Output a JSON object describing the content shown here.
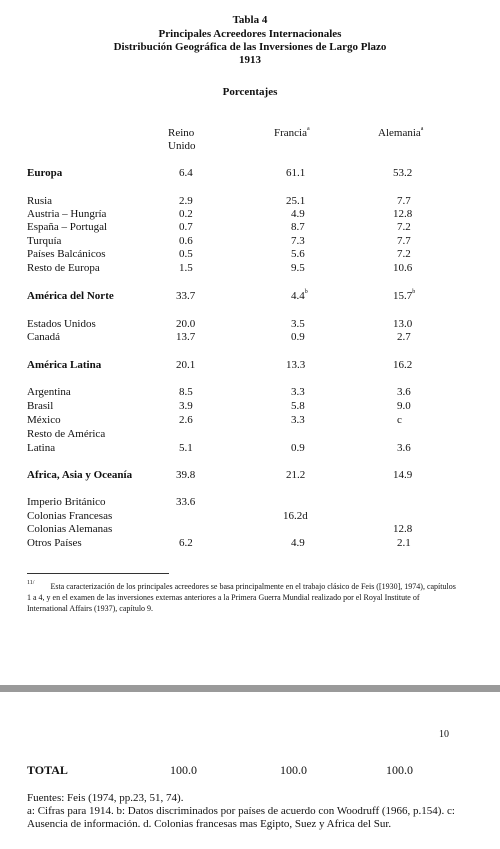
{
  "header": {
    "table_no": "Tabla 4",
    "line1": "Principales Acreedores Internacionales",
    "line2": "Distribución Geográfica de las Inversiones de Largo Plazo",
    "year": "1913",
    "units": "Porcentajes"
  },
  "columns": {
    "c1_line1": "Reino",
    "c1_line2": "Unido",
    "c2": "Francia",
    "c2_sup": "a",
    "c3": "Alemania",
    "c3_sup": "a"
  },
  "rows": {
    "europa": {
      "label": "Europa",
      "c1": "6.4",
      "c2": "61.1",
      "c3": "53.2"
    },
    "rusia": {
      "label": "Rusia",
      "c1": "2.9",
      "c2": "25.1",
      "c3": "7.7"
    },
    "austria": {
      "label": "Austria – Hungría",
      "c1": "0.2",
      "c2": "4.9",
      "c3": "12.8"
    },
    "espana": {
      "label": "España – Portugal",
      "c1": "0.7",
      "c2": "8.7",
      "c3": "7.2"
    },
    "turquia": {
      "label": "Turquía",
      "c1": "0.6",
      "c2": "7.3",
      "c3": "7.7"
    },
    "balcanicos": {
      "label": "Países Balcánicos",
      "c1": "0.5",
      "c2": "5.6",
      "c3": "7.2"
    },
    "resto_europa": {
      "label": "Resto de Europa",
      "c1": "1.5",
      "c2": "9.5",
      "c3": "10.6"
    },
    "am_norte": {
      "label": "América del Norte",
      "c1": "33.7",
      "c2": "4.4",
      "c2_sup": "b",
      "c3": "15.7",
      "c3_sup": "b"
    },
    "eeuu": {
      "label": "Estados Unidos",
      "c1": "20.0",
      "c2": "3.5",
      "c3": "13.0"
    },
    "canada": {
      "label": "Canadá",
      "c1": "13.7",
      "c2": "0.9",
      "c3": "2.7"
    },
    "am_latina": {
      "label": "América Latina",
      "c1": "20.1",
      "c2": "13.3",
      "c3": "16.2"
    },
    "argentina": {
      "label": "Argentina",
      "c1": "8.5",
      "c2": "3.3",
      "c3": "3.6"
    },
    "brasil": {
      "label": "Brasil",
      "c1": "3.9",
      "c2": "5.8",
      "c3": "9.0"
    },
    "mexico": {
      "label": "México",
      "c1": "2.6",
      "c2": "3.3",
      "c3": "c"
    },
    "resto_am_1": {
      "label": "Resto de América"
    },
    "resto_am_2": {
      "label": "Latina",
      "c1": "5.1",
      "c2": "0.9",
      "c3": "3.6"
    },
    "africa": {
      "label": "Africa, Asia y Oceanía",
      "c1": "39.8",
      "c2": "21.2",
      "c3": "14.9"
    },
    "imperio": {
      "label": "Imperio Británico",
      "c1": "33.6"
    },
    "col_fr": {
      "label": "Colonias Francesas",
      "c2": "16.2d"
    },
    "col_al": {
      "label": "Colonias Alemanas",
      "c3": "12.8"
    },
    "otros": {
      "label": "Otros Países",
      "c1": "6.2",
      "c2": "4.9",
      "c3": "2.1"
    }
  },
  "footnote": {
    "mark": "11/",
    "text": "Esta caracterización de los principales acreedores se basa principalmente en el trabajo clásico de Feis ([1930], 1974), capítulos 1 a 4, y en el examen de las inversiones externas anteriores a la Primera Guerra Mundial realizado por el Royal Institute of International Affairs (1937), capítulo 9."
  },
  "page_number": "10",
  "total": {
    "label": "TOTAL",
    "c1": "100.0",
    "c2": "100.0",
    "c3": "100.0"
  },
  "sources": {
    "line1": "Fuentes: Feis (1974, pp.23, 51, 74).",
    "line2": "a: Cifras para 1914. b: Datos discriminados por países de acuerdo con Woodruff (1966, p.154). c: Ausencia de información. d. Colonias francesas mas Egipto, Suez y Africa del Sur."
  }
}
